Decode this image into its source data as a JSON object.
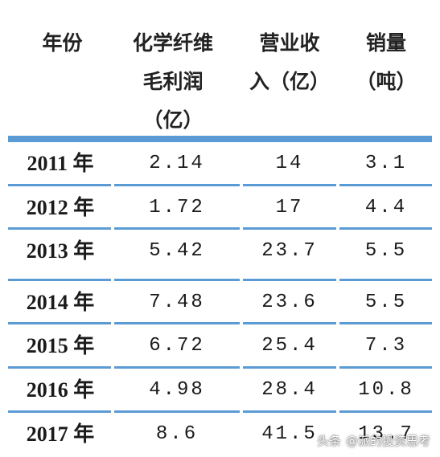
{
  "table": {
    "headers": [
      "年份",
      "化学纤维\n毛利润\n（亿）",
      "营业收\n入（亿）",
      "销量\n（吨）"
    ],
    "rows": [
      [
        "2011 年",
        "2.14",
        "14",
        "3.1"
      ],
      [
        "2012 年",
        "1.72",
        "17",
        "4.4"
      ],
      [
        "2013 年",
        "5.42",
        "23.7",
        "5.5"
      ],
      [
        "2014 年",
        "7.48",
        "23.6",
        "5.5"
      ],
      [
        "2015 年",
        "6.72",
        "25.4",
        "7.3"
      ],
      [
        "2016 年",
        "4.98",
        "28.4",
        "10.8"
      ],
      [
        "2017 年",
        "8.6",
        "41.5",
        "13.7"
      ]
    ]
  },
  "watermark": {
    "prefix": "头条",
    "handle": "@派的投资思考"
  },
  "colors": {
    "rule": "#5b9bd5"
  }
}
